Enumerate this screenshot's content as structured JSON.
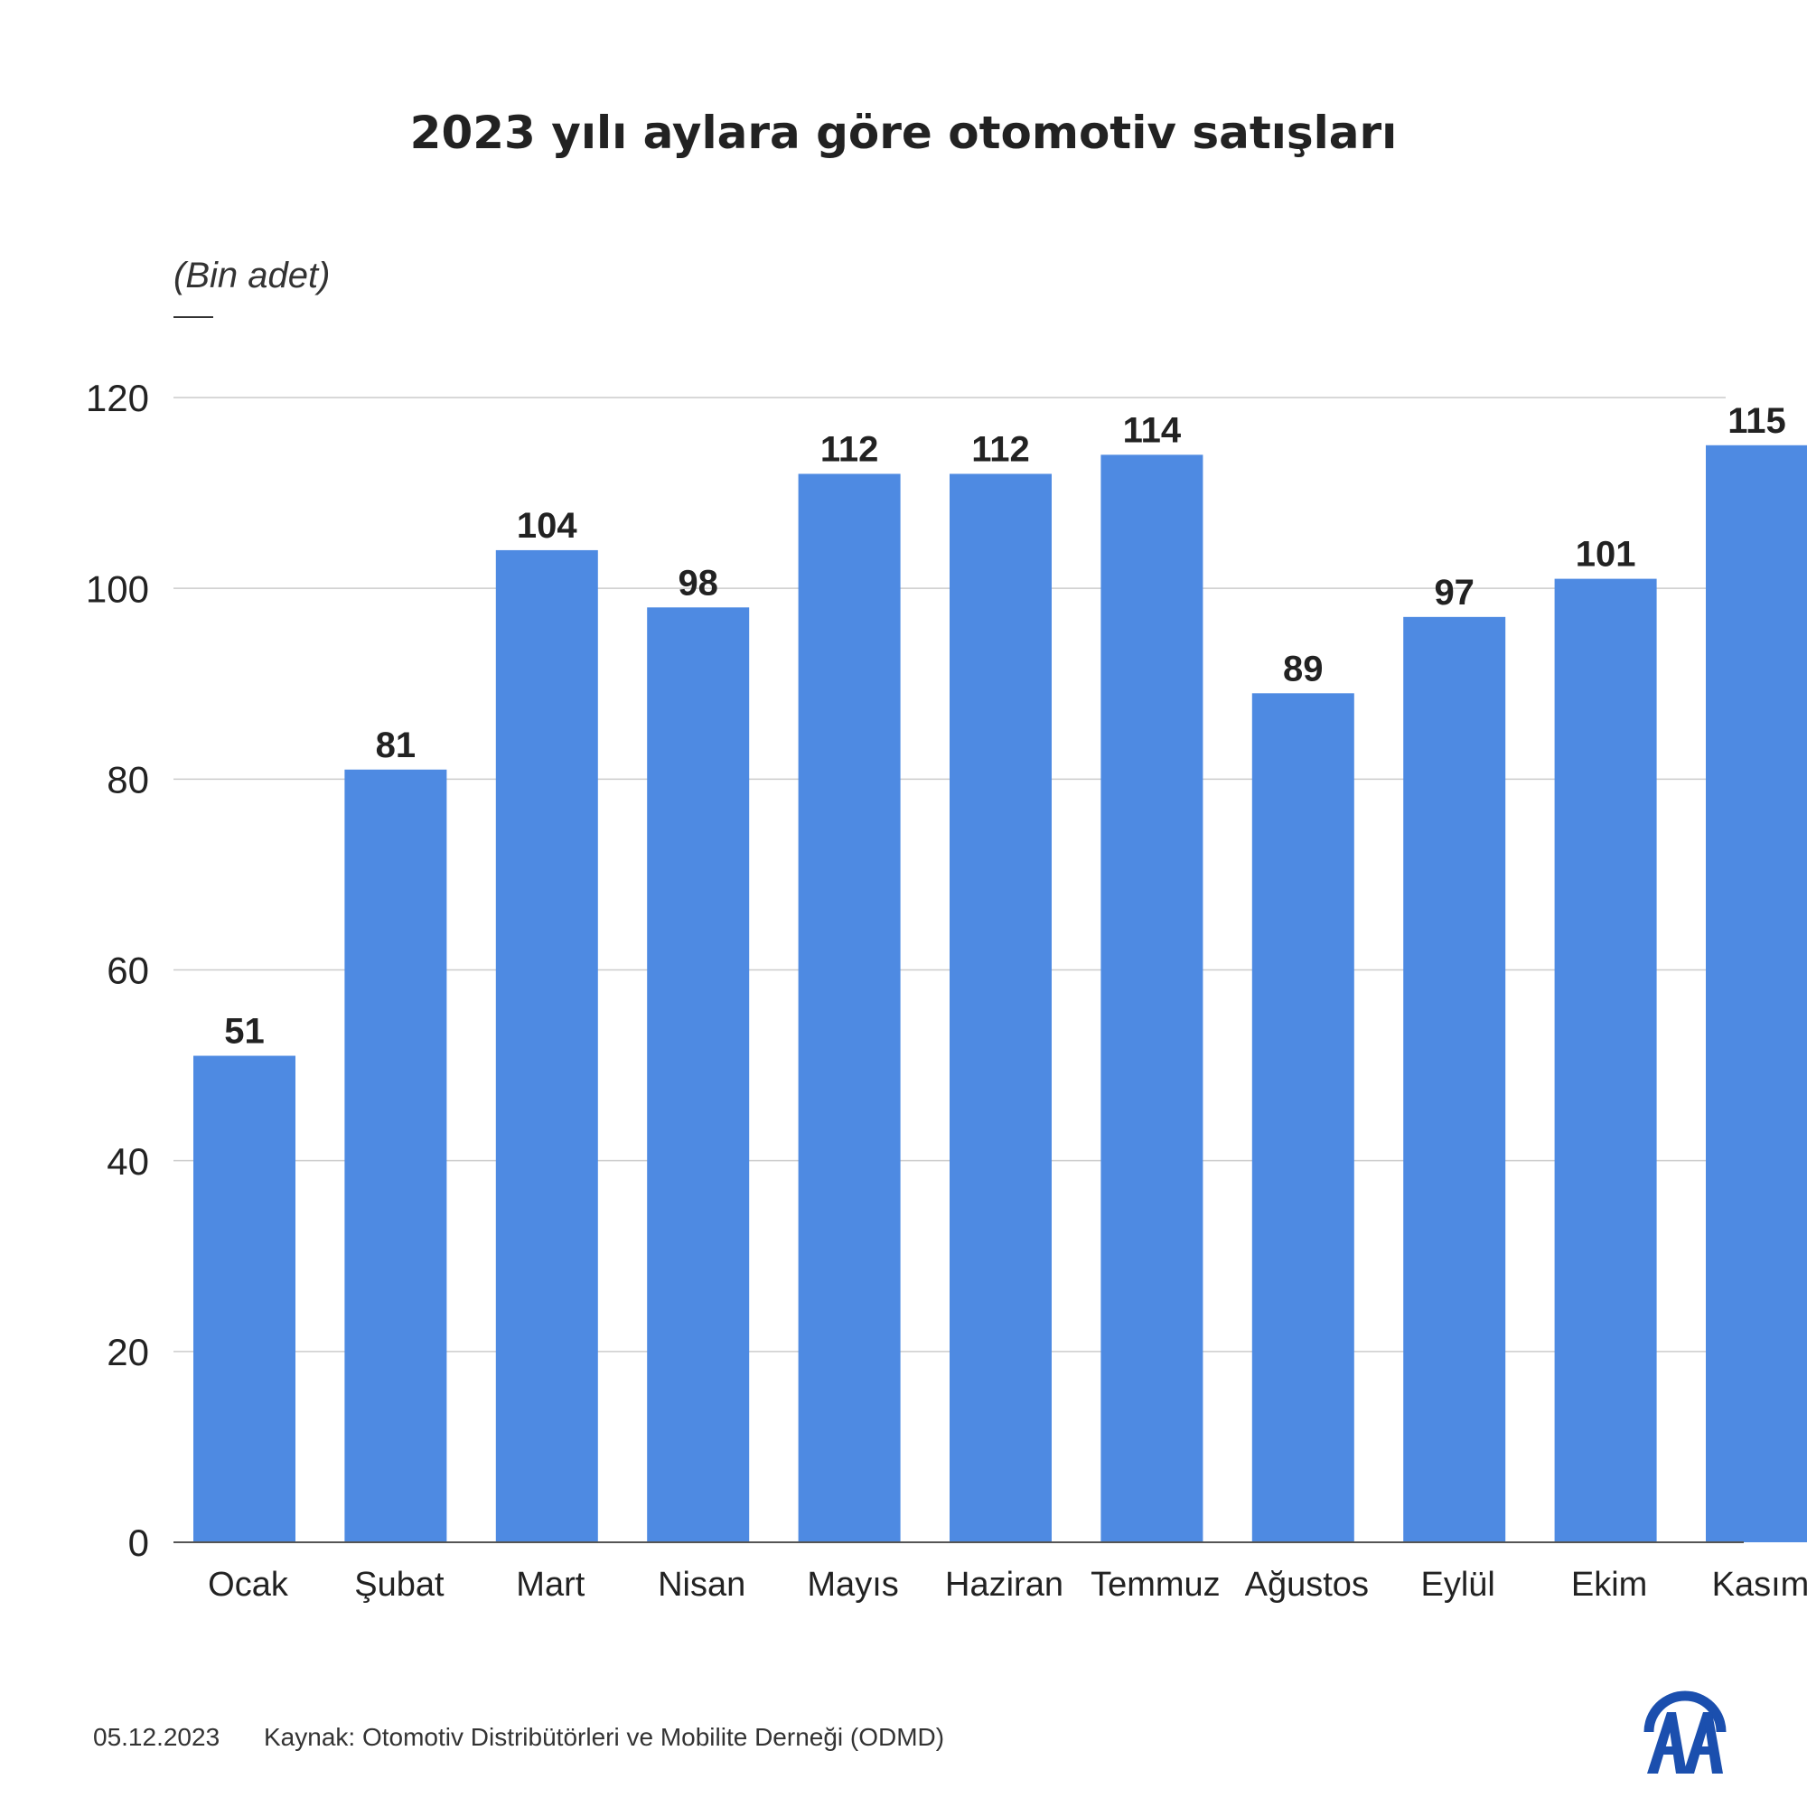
{
  "chart_data": {
    "type": "bar",
    "title": "2023 yılı aylara göre otomotiv satışları",
    "unit_label": "(Bin adet)",
    "categories": [
      "Ocak",
      "Şubat",
      "Mart",
      "Nisan",
      "Mayıs",
      "Haziran",
      "Temmuz",
      "Ağustos",
      "Eylül",
      "Ekim",
      "Kasım"
    ],
    "values": [
      51,
      81,
      104,
      98,
      112,
      112,
      114,
      89,
      97,
      101,
      115
    ],
    "ylim": [
      0,
      120
    ],
    "yticks": [
      0,
      20,
      40,
      60,
      80,
      100,
      120
    ],
    "grid": true,
    "bar_color": "#4e8ae2",
    "data_labels": true
  },
  "footer": {
    "date": "05.12.2023",
    "source": "Kaynak: Otomotiv Distribütörleri ve Mobilite Derneği (ODMD)"
  },
  "logo": {
    "icon": "aa-logo-icon",
    "color": "#1b4fae"
  }
}
